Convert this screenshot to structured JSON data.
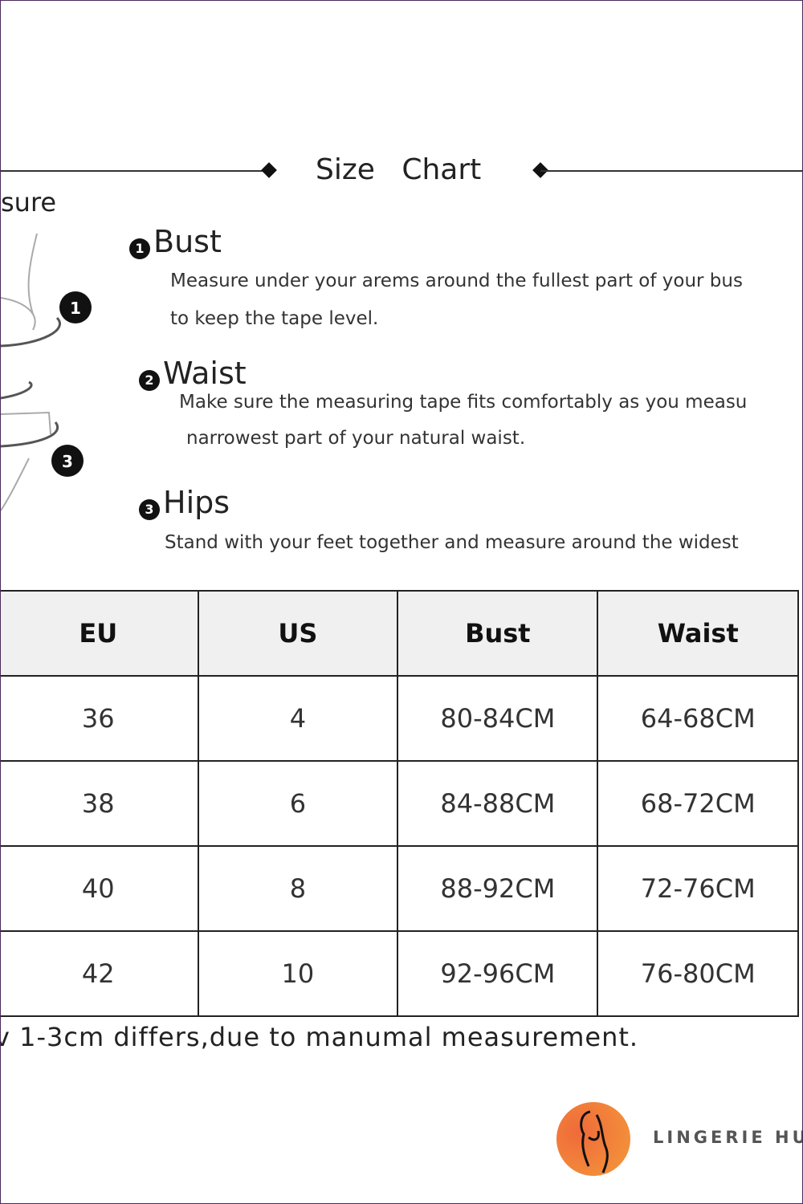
{
  "title": "Size   Chart",
  "how_to_measure_fragment": "sure",
  "diagram_markers": [
    "1",
    "3"
  ],
  "steps": [
    {
      "num": "1",
      "heading": "Bust",
      "lines": [
        "Measure under your arems around the fullest part of your bus",
        "to keep the tape level."
      ]
    },
    {
      "num": "2",
      "heading": "Waist",
      "lines": [
        "Make sure the measuring tape fits comfortably as you measu",
        "narrowest part of your natural waist."
      ]
    },
    {
      "num": "3",
      "heading": "Hips",
      "lines": [
        "Stand with your feet together and measure around the widest"
      ]
    }
  ],
  "table": {
    "headers": [
      "EU",
      "US",
      "Bust",
      "Waist"
    ],
    "rows": [
      [
        "36",
        "4",
        "80-84CM",
        "64-68CM"
      ],
      [
        "38",
        "6",
        "84-88CM",
        "68-72CM"
      ],
      [
        "40",
        "8",
        "88-92CM",
        "72-76CM"
      ],
      [
        "42",
        "10",
        "92-96CM",
        "76-80CM"
      ]
    ]
  },
  "note": "v 1-3cm differs,due to manumal measurement.",
  "brand": {
    "name": "LINGERIE HUT",
    "color": "#f27a3a"
  }
}
